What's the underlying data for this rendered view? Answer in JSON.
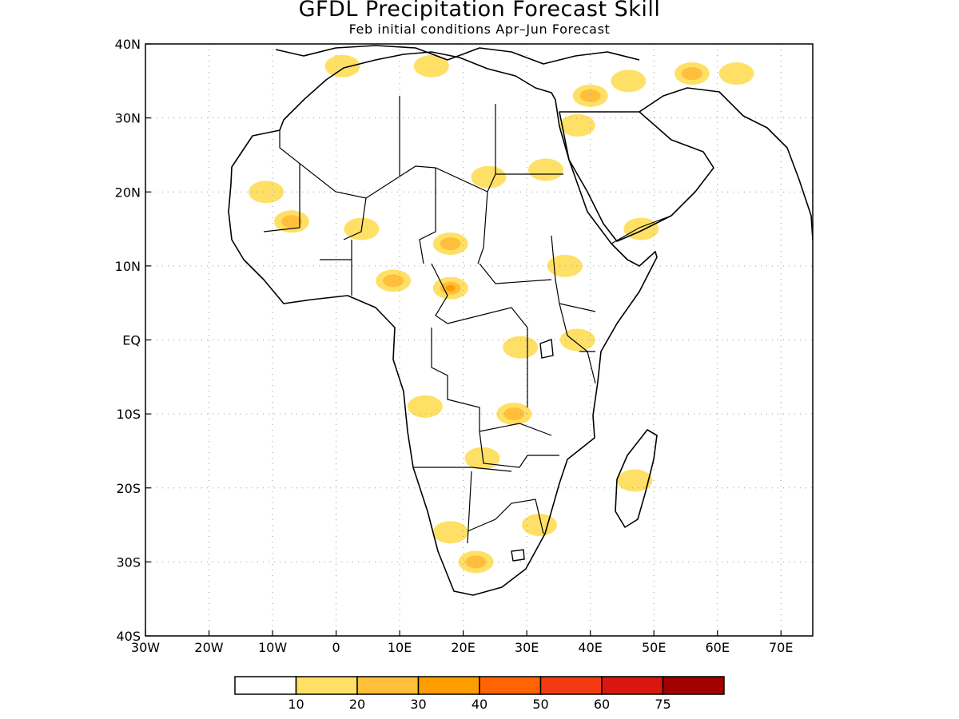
{
  "title": "GFDL Precipitation Forecast Skill",
  "subtitle": "Feb initial conditions  Apr–Jun Forecast",
  "map": {
    "lon_range": [
      -30,
      75
    ],
    "lat_range": [
      -40,
      40
    ],
    "x_ticks": [
      "30W",
      "20W",
      "10W",
      "0",
      "10E",
      "20E",
      "30E",
      "40E",
      "50E",
      "60E",
      "70E"
    ],
    "y_ticks": [
      "40N",
      "30N",
      "20N",
      "10N",
      "EQ",
      "10S",
      "20S",
      "30S",
      "40S"
    ],
    "grid": true,
    "coastline_color": "#000000",
    "skill_regions": [
      {
        "lon": 46,
        "lat": 35,
        "level": 1
      },
      {
        "lon": 56,
        "lat": 36,
        "level": 2
      },
      {
        "lon": 63,
        "lat": 36,
        "level": 1
      },
      {
        "lon": 40,
        "lat": 33,
        "level": 2
      },
      {
        "lon": 38,
        "lat": 29,
        "level": 1
      },
      {
        "lon": 33,
        "lat": 23,
        "level": 1
      },
      {
        "lon": -7,
        "lat": 16,
        "level": 2
      },
      {
        "lon": -11,
        "lat": 20,
        "level": 1
      },
      {
        "lon": 4,
        "lat": 15,
        "level": 1
      },
      {
        "lon": 18,
        "lat": 13,
        "level": 2
      },
      {
        "lon": 9,
        "lat": 8,
        "level": 2
      },
      {
        "lon": 18,
        "lat": 7,
        "level": 3
      },
      {
        "lon": 36,
        "lat": 10,
        "level": 1
      },
      {
        "lon": 38,
        "lat": 0,
        "level": 1
      },
      {
        "lon": 29,
        "lat": -1,
        "level": 1
      },
      {
        "lon": 14,
        "lat": -9,
        "level": 1
      },
      {
        "lon": 28,
        "lat": -10,
        "level": 2
      },
      {
        "lon": 23,
        "lat": -16,
        "level": 1
      },
      {
        "lon": 32,
        "lat": -25,
        "level": 1
      },
      {
        "lon": 18,
        "lat": -26,
        "level": 1
      },
      {
        "lon": 22,
        "lat": -30,
        "level": 2
      },
      {
        "lon": 47,
        "lat": -19,
        "level": 1
      },
      {
        "lon": 1,
        "lat": 37,
        "level": 1
      },
      {
        "lon": 24,
        "lat": 22,
        "level": 1
      },
      {
        "lon": 48,
        "lat": 15,
        "level": 1
      },
      {
        "lon": 15,
        "lat": 37,
        "level": 1
      }
    ]
  },
  "colorbar": {
    "colors": [
      "#ffffff",
      "#ffe066",
      "#ffbf3a",
      "#ff9c00",
      "#ff6400",
      "#f33a12",
      "#d91710",
      "#a30000"
    ],
    "labels": [
      "10",
      "20",
      "30",
      "40",
      "50",
      "60",
      "75"
    ]
  }
}
